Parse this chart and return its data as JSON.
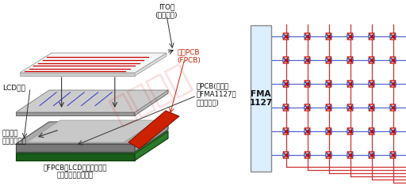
{
  "bg_color": "#ffffff",
  "left_panel": {
    "ito_label": "ITO层\n(无需地层)",
    "fpcb_label": "柔性PCB\n(FPCB)",
    "lcd_label": "LCD面板",
    "main_pcb_label": "主PCB(微控制\n器FMA1127被\n放置在这里)",
    "bottom_label1": "该层作用\n相当于有源地",
    "bottom_label2": "在FPCB和LCD面板之间推荐\n使用橡胶等绝缘材料",
    "red_line_color": "#cc0000",
    "blue_line_color": "#4444cc",
    "green_pcb": "#2d7a2d",
    "red_fpcb": "#cc2200",
    "frame_gray_side": "#888888",
    "frame_gray_top": "#bbbbbb",
    "inner_light": "#d0d0d0",
    "ito_edge": "#aaaaaa",
    "ito_face": "#f5f5f5",
    "ito_thin_edge": "#cccccc"
  },
  "right_panel": {
    "fma_label": "FMA\n1127",
    "box_bg": "#ddeeff",
    "box_border": "#888888",
    "rows": 6,
    "cols": 6,
    "node_fill": "#c8dfc0",
    "red": "#cc0000",
    "blue": "#3355cc",
    "row_line_color": "#5566cc",
    "col_line_color": "#cc3333"
  },
  "watermark_color": "#dd2222",
  "watermark_alpha": 0.15
}
